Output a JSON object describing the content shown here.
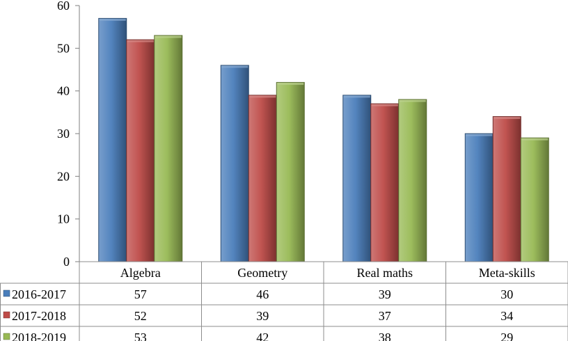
{
  "chart_data": {
    "type": "bar",
    "categories": [
      "Algebra",
      "Geometry",
      "Real maths",
      "Meta-skills"
    ],
    "series": [
      {
        "name": "2016-2017",
        "values": [
          57,
          46,
          39,
          30
        ],
        "color": "#4a7ebb"
      },
      {
        "name": "2017-2018",
        "values": [
          52,
          39,
          37,
          34
        ],
        "color": "#be4b48"
      },
      {
        "name": "2018-2019",
        "values": [
          53,
          42,
          38,
          29
        ],
        "color": "#98b954"
      }
    ],
    "ylim": [
      0,
      60
    ],
    "yticks": [
      0,
      10,
      20,
      30,
      40,
      50,
      60
    ],
    "grid": false,
    "data_table": true,
    "legend": "in data table"
  }
}
